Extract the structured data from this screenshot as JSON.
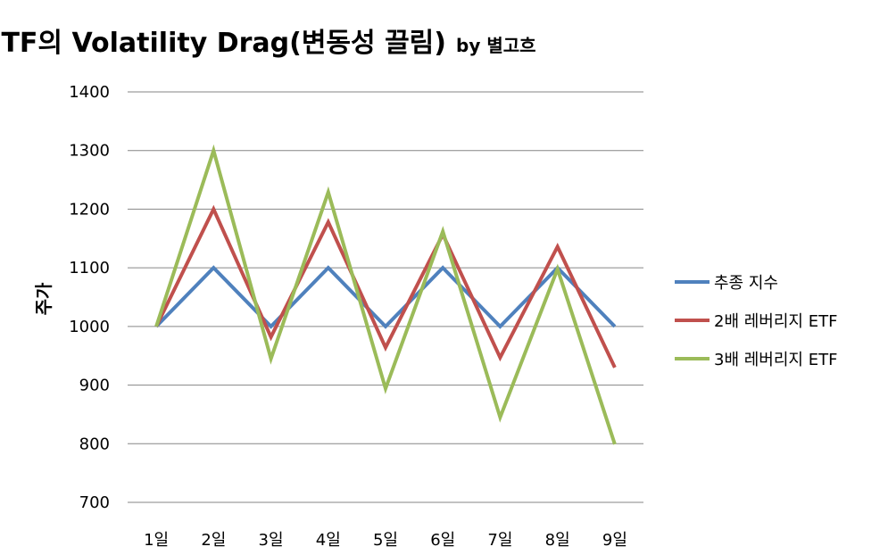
{
  "chart_data": {
    "type": "line",
    "title": "레버리지 ETF의 Volatility Drag(변동성 끌림)",
    "subtitle": "by 별고흐",
    "xlabel": "",
    "ylabel": "주가",
    "ylim": [
      700,
      1400
    ],
    "ytick_step": 100,
    "grid": true,
    "legend_position": "right",
    "categories": [
      "1일",
      "2일",
      "3일",
      "4일",
      "5일",
      "6일",
      "7일",
      "8일",
      "9일"
    ],
    "series": [
      {
        "name": "추종 지수",
        "color": "#4f81bd",
        "values": [
          1000,
          1100,
          1000,
          1100,
          1000,
          1100,
          1000,
          1100,
          1000
        ]
      },
      {
        "name": "2배 레버리지 ETF",
        "color": "#c0504d",
        "values": [
          1000,
          1200,
          982,
          1178,
          964,
          1157,
          947,
          1136,
          930
        ]
      },
      {
        "name": "3배 레버리지 ETF",
        "color": "#9bbb59",
        "values": [
          1000,
          1300,
          945,
          1229,
          894,
          1162,
          845,
          1098,
          799
        ]
      }
    ]
  }
}
